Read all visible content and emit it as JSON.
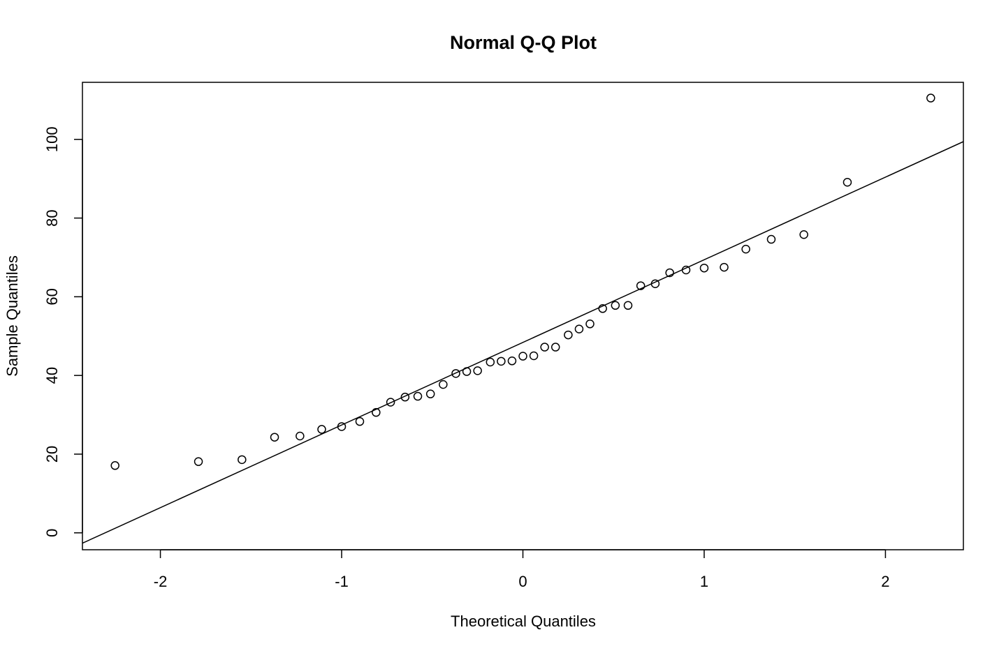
{
  "chart_data": {
    "type": "scatter",
    "title": "Normal Q-Q Plot",
    "xlabel": "Theoretical Quantiles",
    "ylabel": "Sample Quantiles",
    "xlim": [
      -2.43,
      2.43
    ],
    "ylim": [
      -4.3,
      114.5
    ],
    "x_ticks": [
      -2,
      -1,
      0,
      1,
      2
    ],
    "x_tick_labels": [
      "-2",
      "-1",
      "0",
      "1",
      "2"
    ],
    "y_ticks": [
      0,
      20,
      40,
      60,
      80,
      100
    ],
    "y_tick_labels": [
      "0",
      "20",
      "40",
      "60",
      "80",
      "100"
    ],
    "grid": false,
    "legend": "none",
    "points": [
      {
        "x": -2.25,
        "y": 17.1
      },
      {
        "x": -1.79,
        "y": 18.1
      },
      {
        "x": -1.55,
        "y": 18.6
      },
      {
        "x": -1.37,
        "y": 24.3
      },
      {
        "x": -1.23,
        "y": 24.6
      },
      {
        "x": -1.11,
        "y": 26.3
      },
      {
        "x": -1.0,
        "y": 27.0
      },
      {
        "x": -0.9,
        "y": 28.3
      },
      {
        "x": -0.81,
        "y": 30.6
      },
      {
        "x": -0.73,
        "y": 33.2
      },
      {
        "x": -0.65,
        "y": 34.5
      },
      {
        "x": -0.58,
        "y": 34.7
      },
      {
        "x": -0.51,
        "y": 35.3
      },
      {
        "x": -0.44,
        "y": 37.7
      },
      {
        "x": -0.37,
        "y": 40.5
      },
      {
        "x": -0.31,
        "y": 41.0
      },
      {
        "x": -0.25,
        "y": 41.2
      },
      {
        "x": -0.18,
        "y": 43.4
      },
      {
        "x": -0.12,
        "y": 43.6
      },
      {
        "x": -0.06,
        "y": 43.7
      },
      {
        "x": 0.0,
        "y": 44.9
      },
      {
        "x": 0.06,
        "y": 45.0
      },
      {
        "x": 0.12,
        "y": 47.2
      },
      {
        "x": 0.18,
        "y": 47.2
      },
      {
        "x": 0.25,
        "y": 50.3
      },
      {
        "x": 0.31,
        "y": 51.8
      },
      {
        "x": 0.37,
        "y": 53.1
      },
      {
        "x": 0.44,
        "y": 57.0
      },
      {
        "x": 0.51,
        "y": 57.8
      },
      {
        "x": 0.58,
        "y": 57.8
      },
      {
        "x": 0.65,
        "y": 62.8
      },
      {
        "x": 0.73,
        "y": 63.3
      },
      {
        "x": 0.81,
        "y": 66.1
      },
      {
        "x": 0.9,
        "y": 66.8
      },
      {
        "x": 1.0,
        "y": 67.3
      },
      {
        "x": 1.11,
        "y": 67.5
      },
      {
        "x": 1.23,
        "y": 72.1
      },
      {
        "x": 1.37,
        "y": 74.6
      },
      {
        "x": 1.55,
        "y": 75.8
      },
      {
        "x": 1.79,
        "y": 89.1
      },
      {
        "x": 2.25,
        "y": 110.5
      }
    ],
    "reference_line": {
      "intercept": 48.4,
      "slope": 21.0
    },
    "colors": {
      "points": "#000000",
      "line": "#000000",
      "background": "#ffffff"
    }
  }
}
